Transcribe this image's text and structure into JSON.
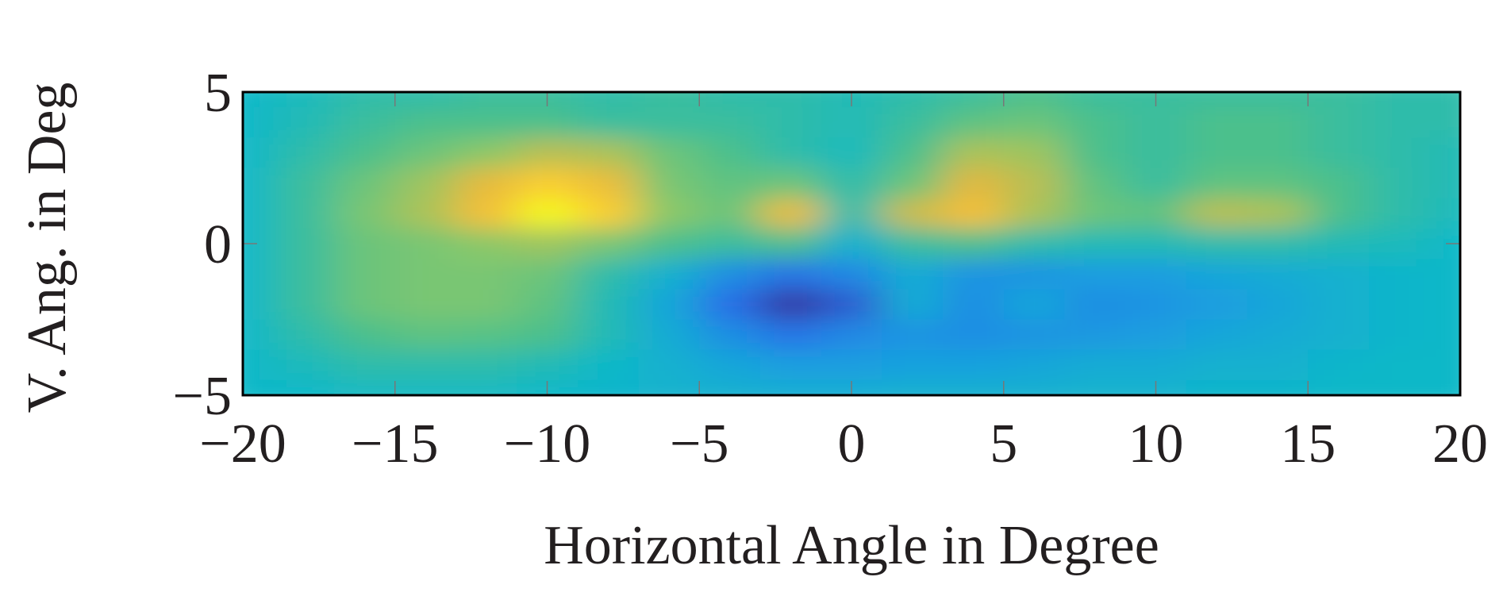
{
  "chart_data": {
    "type": "heatmap",
    "xlabel": "Horizontal Angle in Degree",
    "ylabel": "V. Ang. in Deg",
    "xlim": [
      -20,
      20
    ],
    "ylim": [
      -5,
      5
    ],
    "xticks": [
      {
        "value": -20,
        "label": "−20"
      },
      {
        "value": -15,
        "label": "−15"
      },
      {
        "value": -10,
        "label": "−10"
      },
      {
        "value": -5,
        "label": "−5"
      },
      0,
      5,
      10,
      15,
      20
    ],
    "yticks": [
      {
        "value": -5,
        "label": "−5"
      },
      0,
      5
    ],
    "x": [
      -20,
      -18,
      -16,
      -14,
      -12,
      -10,
      -8,
      -6,
      -4,
      -2,
      0,
      2,
      4,
      6,
      8,
      10,
      12,
      14,
      16,
      18,
      20
    ],
    "y": [
      5,
      4,
      3,
      2,
      1,
      0,
      -1,
      -2,
      -3,
      -4,
      -5
    ],
    "z": [
      [
        0.45,
        0.47,
        0.5,
        0.5,
        0.52,
        0.52,
        0.5,
        0.52,
        0.5,
        0.5,
        0.48,
        0.5,
        0.52,
        0.55,
        0.52,
        0.52,
        0.52,
        0.52,
        0.52,
        0.5,
        0.5
      ],
      [
        0.45,
        0.48,
        0.52,
        0.55,
        0.55,
        0.55,
        0.52,
        0.52,
        0.52,
        0.5,
        0.48,
        0.52,
        0.58,
        0.6,
        0.55,
        0.52,
        0.55,
        0.55,
        0.52,
        0.5,
        0.5
      ],
      [
        0.45,
        0.5,
        0.55,
        0.6,
        0.65,
        0.72,
        0.7,
        0.6,
        0.55,
        0.5,
        0.47,
        0.55,
        0.7,
        0.68,
        0.55,
        0.52,
        0.55,
        0.55,
        0.52,
        0.5,
        0.48
      ],
      [
        0.45,
        0.52,
        0.6,
        0.68,
        0.8,
        0.9,
        0.82,
        0.62,
        0.58,
        0.6,
        0.5,
        0.6,
        0.78,
        0.72,
        0.58,
        0.52,
        0.58,
        0.58,
        0.55,
        0.5,
        0.48
      ],
      [
        0.45,
        0.52,
        0.62,
        0.7,
        0.85,
        1.0,
        0.9,
        0.65,
        0.6,
        0.82,
        0.5,
        0.75,
        0.85,
        0.7,
        0.6,
        0.58,
        0.72,
        0.7,
        0.55,
        0.5,
        0.47
      ],
      [
        0.45,
        0.52,
        0.6,
        0.62,
        0.65,
        0.68,
        0.62,
        0.55,
        0.52,
        0.55,
        0.42,
        0.52,
        0.55,
        0.5,
        0.48,
        0.48,
        0.5,
        0.5,
        0.48,
        0.47,
        0.45
      ],
      [
        0.45,
        0.52,
        0.6,
        0.62,
        0.62,
        0.6,
        0.5,
        0.42,
        0.3,
        0.22,
        0.28,
        0.4,
        0.32,
        0.32,
        0.35,
        0.35,
        0.38,
        0.4,
        0.42,
        0.44,
        0.45
      ],
      [
        0.45,
        0.52,
        0.6,
        0.62,
        0.62,
        0.58,
        0.48,
        0.38,
        0.2,
        0.05,
        0.15,
        0.4,
        0.3,
        0.38,
        0.3,
        0.32,
        0.35,
        0.38,
        0.42,
        0.44,
        0.45
      ],
      [
        0.45,
        0.5,
        0.55,
        0.58,
        0.57,
        0.55,
        0.48,
        0.4,
        0.3,
        0.22,
        0.28,
        0.32,
        0.3,
        0.32,
        0.33,
        0.35,
        0.38,
        0.4,
        0.42,
        0.44,
        0.45
      ],
      [
        0.45,
        0.47,
        0.5,
        0.5,
        0.5,
        0.48,
        0.45,
        0.42,
        0.38,
        0.35,
        0.35,
        0.36,
        0.36,
        0.38,
        0.4,
        0.4,
        0.42,
        0.42,
        0.44,
        0.45,
        0.45
      ],
      [
        0.45,
        0.45,
        0.46,
        0.46,
        0.46,
        0.45,
        0.44,
        0.43,
        0.42,
        0.41,
        0.41,
        0.42,
        0.42,
        0.42,
        0.43,
        0.43,
        0.44,
        0.44,
        0.45,
        0.45,
        0.45
      ]
    ],
    "colormap": [
      {
        "value": 0,
        "color": "#3a2a8c"
      },
      {
        "value": 0.2,
        "color": "#2a6ee8"
      },
      {
        "value": 0.35,
        "color": "#1a9ee0"
      },
      {
        "value": 0.45,
        "color": "#10b8c8"
      },
      {
        "value": 0.55,
        "color": "#4cc08c"
      },
      {
        "value": 0.65,
        "color": "#8cc868"
      },
      {
        "value": 0.78,
        "color": "#e0b840"
      },
      {
        "value": 0.88,
        "color": "#fcc434"
      },
      {
        "value": 1,
        "color": "#f4f81c"
      }
    ]
  }
}
